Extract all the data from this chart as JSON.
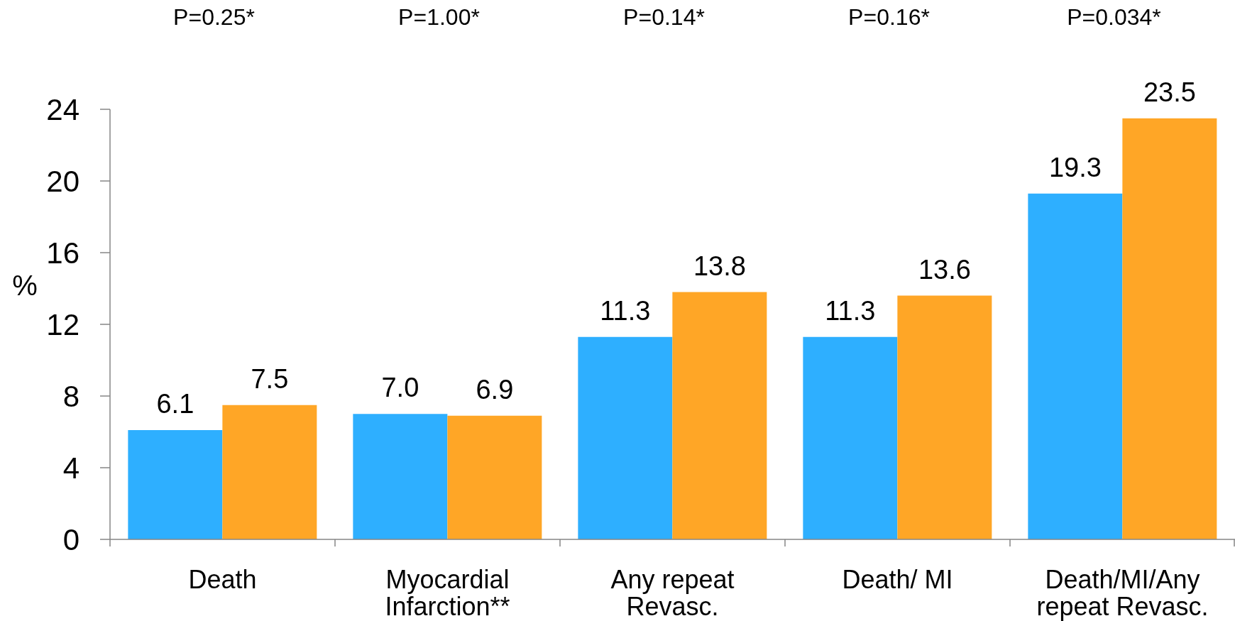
{
  "chart_data": {
    "type": "bar",
    "categories": [
      "Death",
      "Myocardial Infarction**",
      "Any repeat Revasc.",
      "Death/ MI",
      "Death/MI/Any repeat Revasc."
    ],
    "series": [
      {
        "color": "#2eafff",
        "values": [
          6.1,
          7.0,
          11.3,
          11.3,
          19.3
        ],
        "value_labels": [
          "6.1",
          "7.0",
          "11.3",
          "11.3",
          "19.3"
        ]
      },
      {
        "color": "#ffa626",
        "values": [
          7.5,
          6.9,
          13.8,
          13.6,
          23.5
        ],
        "value_labels": [
          "7.5",
          "6.9",
          "13.8",
          "13.6",
          "23.5"
        ]
      }
    ],
    "ylabel": "%",
    "ylim": [
      0,
      24
    ],
    "yticks": [
      0,
      4,
      8,
      12,
      16,
      20,
      24
    ],
    "annotations": [
      "P=0.25*",
      "P=1.00*",
      "P=0.14*",
      "P=0.16*",
      "P=0.034*"
    ]
  }
}
